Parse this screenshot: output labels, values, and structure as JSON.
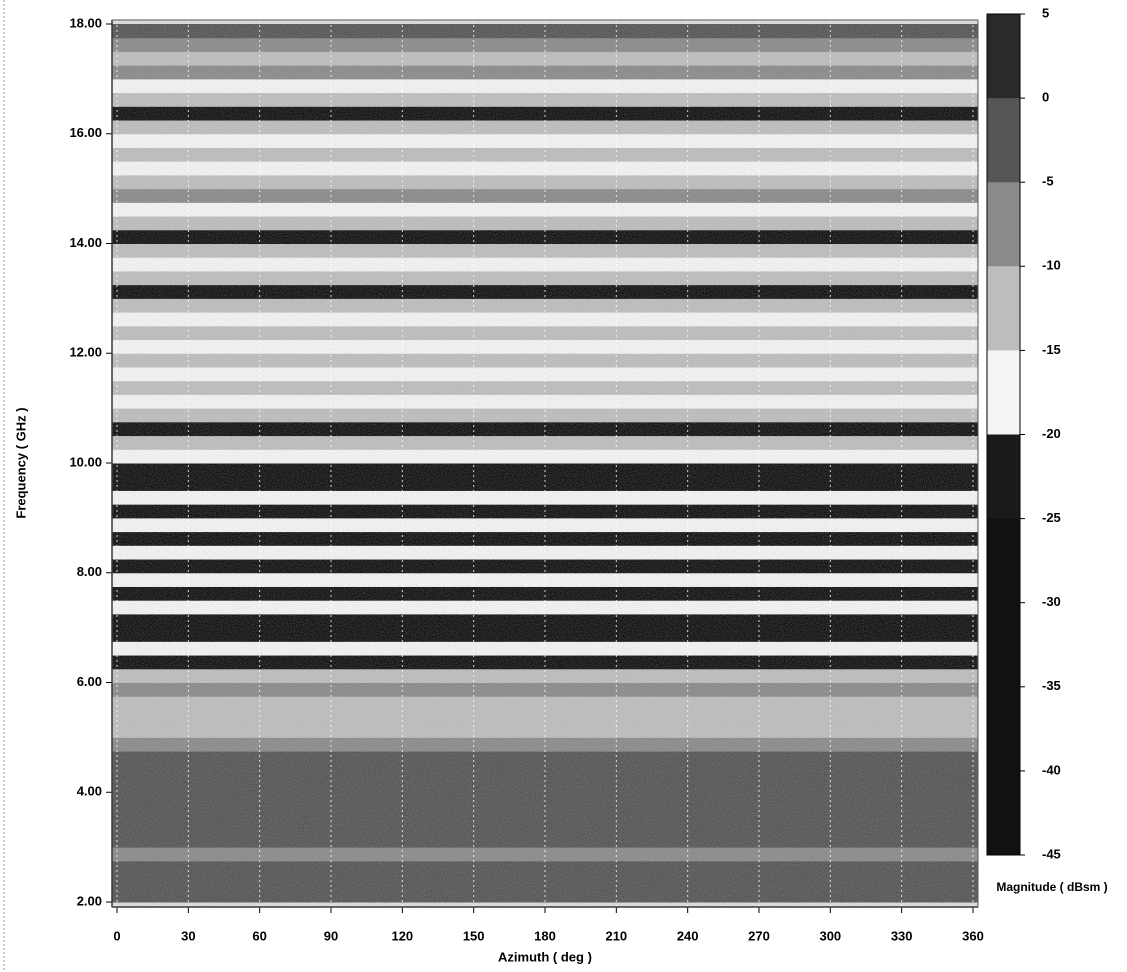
{
  "chart_data": {
    "type": "heatmap",
    "x_label": "Azimuth ( deg )",
    "y_label": "Frequency ( GHz )",
    "colorbar_label": "Magnitude ( dBsm )",
    "xlim": [
      0,
      360
    ],
    "xticks": [
      0,
      30,
      60,
      90,
      120,
      150,
      180,
      210,
      240,
      270,
      300,
      330,
      360
    ],
    "ylim": [
      2,
      18
    ],
    "yticks": [
      {
        "value": 2,
        "label": "2.00"
      },
      {
        "value": 4,
        "label": "4.00"
      },
      {
        "value": 6,
        "label": "6.00"
      },
      {
        "value": 8,
        "label": "8.00"
      },
      {
        "value": 10,
        "label": "10.00"
      },
      {
        "value": 12,
        "label": "12.00"
      },
      {
        "value": 14,
        "label": "14.00"
      },
      {
        "value": 16,
        "label": "16.00"
      },
      {
        "value": 18,
        "label": "18.00"
      }
    ],
    "clim": [
      -45,
      5
    ],
    "cticks": [
      -45,
      -40,
      -35,
      -30,
      -25,
      -20,
      -15,
      -10,
      -5,
      0,
      5
    ],
    "colors": [
      "#2a2a2a",
      "#555555",
      "#8a8a8a",
      "#bdbdbd",
      "#f4f4f4",
      "#1a1a1a",
      "#111111",
      "#111111",
      "#111111",
      "#111111"
    ],
    "y_bins": [
      2,
      2.25,
      2.5,
      2.75,
      3,
      3.25,
      3.5,
      3.75,
      4,
      4.25,
      4.5,
      4.75,
      5,
      5.25,
      5.5,
      5.75,
      6,
      6.25,
      6.5,
      6.75,
      7,
      7.25,
      7.5,
      7.75,
      8,
      8.25,
      8.5,
      8.75,
      9,
      9.25,
      9.5,
      9.75,
      10,
      10.25,
      10.5,
      10.75,
      11,
      11.25,
      11.5,
      11.75,
      12,
      12.25,
      12.5,
      12.75,
      13,
      13.25,
      13.5,
      13.75,
      14,
      14.25,
      14.5,
      14.75,
      15,
      15.25,
      15.5,
      15.75,
      16,
      16.25,
      16.5,
      16.75,
      17,
      17.25,
      17.5,
      17.75,
      18
    ],
    "values": [
      -2,
      -2,
      -2,
      -8,
      -2,
      -2,
      -2,
      -2,
      -2,
      -2,
      -2,
      -8,
      -12,
      -10,
      -12,
      -8,
      -12,
      -30,
      -17,
      -30,
      -30,
      -17,
      -30,
      -17,
      -30,
      -17,
      -30,
      -17,
      -30,
      -17,
      -30,
      -30,
      -17,
      -14,
      -30,
      -14,
      -17,
      -12,
      -17,
      -12,
      -17,
      -12,
      -17,
      -12,
      -30,
      -12,
      -17,
      -12,
      -30,
      -12,
      -17,
      -8,
      -12,
      -17,
      -12,
      -17,
      -12,
      -30,
      -12,
      -17,
      -8,
      -12,
      -8,
      -3
    ]
  }
}
